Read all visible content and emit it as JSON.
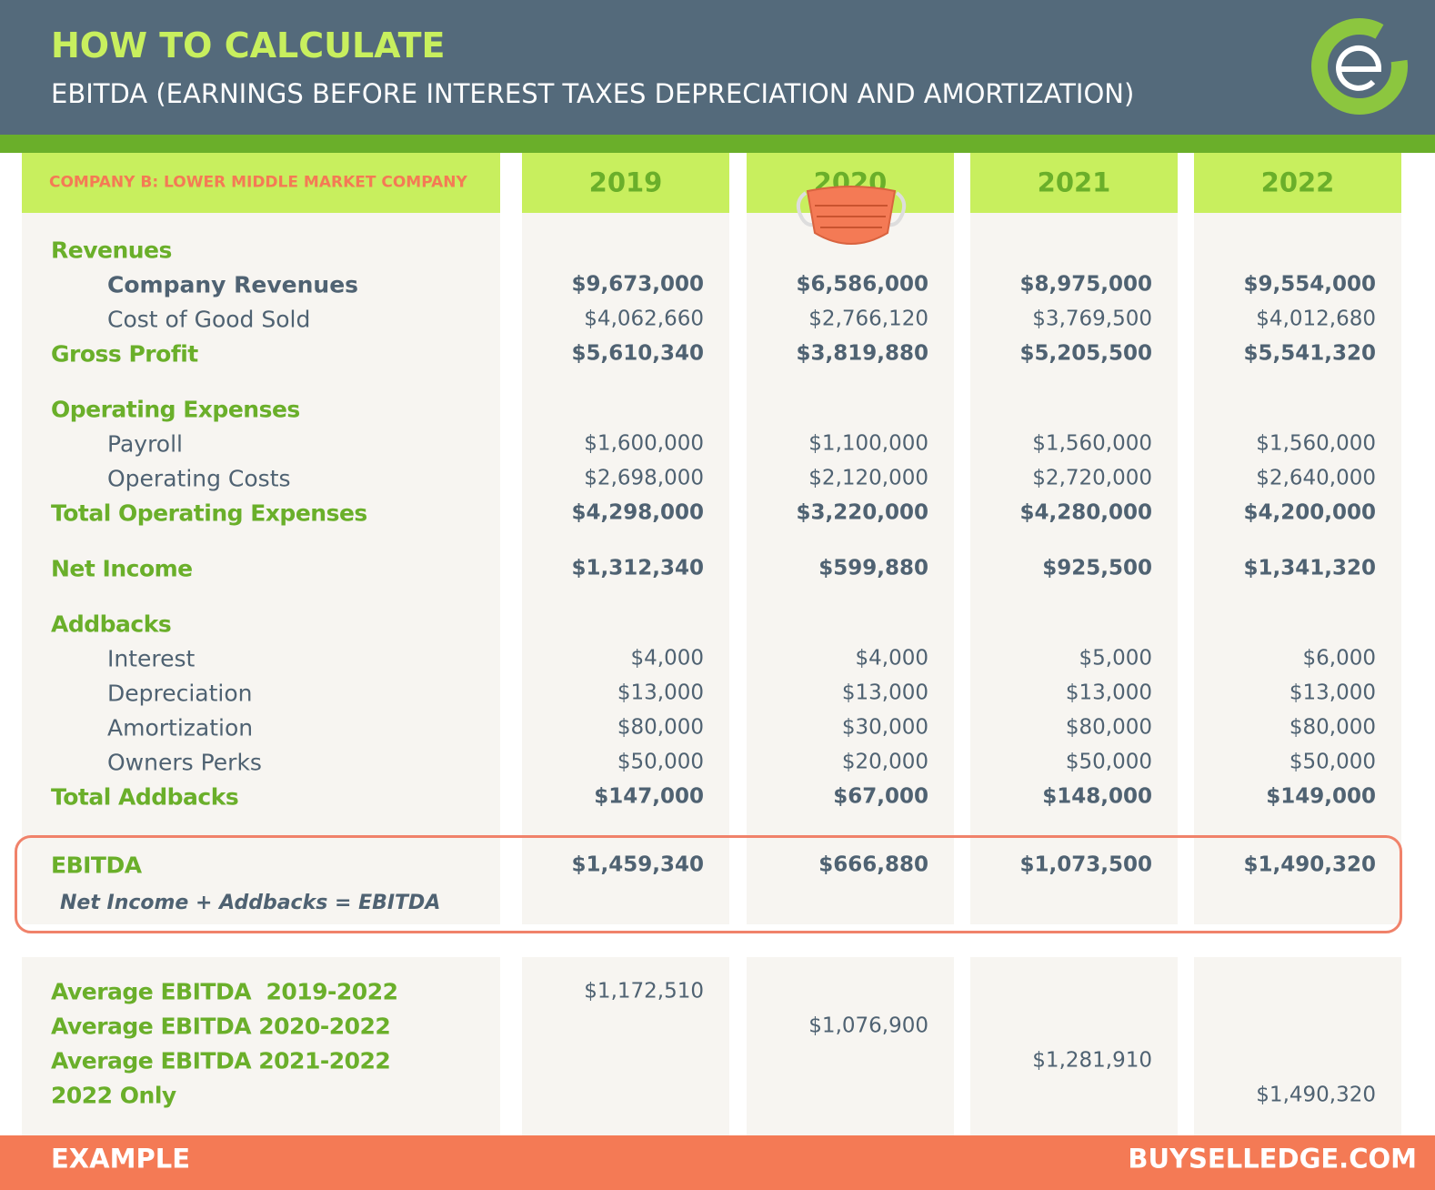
{
  "header": {
    "title": "HOW TO CALCULATE",
    "subtitle": "EBITDA (EARNINGS BEFORE INTEREST TAXES DEPRECIATION AND AMORTIZATION)"
  },
  "table": {
    "company": "COMPANY B: LOWER MIDDLE MARKET COMPANY",
    "years": [
      "2019",
      "2020",
      "2021",
      "2022"
    ],
    "sections": [
      {
        "heading": "Revenues",
        "items": [
          {
            "label": "Company Revenues",
            "values": [
              "$9,673,000",
              "$6,586,000",
              "$8,975,000",
              "$9,554,000"
            ]
          },
          {
            "label": "Cost of Good Sold",
            "values": [
              "$4,062,660",
              "$2,766,120",
              "$3,769,500",
              "$4,012,680"
            ]
          }
        ],
        "total": {
          "label": "Gross Profit",
          "values": [
            "$5,610,340",
            "$3,819,880",
            "$5,205,500",
            "$5,541,320"
          ]
        }
      },
      {
        "heading": "Operating Expenses",
        "items": [
          {
            "label": "Payroll",
            "values": [
              "$1,600,000",
              "$1,100,000",
              "$1,560,000",
              "$1,560,000"
            ]
          },
          {
            "label": "Operating Costs",
            "values": [
              "$2,698,000",
              "$2,120,000",
              "$2,720,000",
              "$2,640,000"
            ]
          }
        ],
        "total": {
          "label": "Total Operating Expenses",
          "values": [
            "$4,298,000",
            "$3,220,000",
            "$4,280,000",
            "$4,200,000"
          ]
        }
      }
    ],
    "net_income": {
      "label": "Net Income",
      "values": [
        "$1,312,340",
        "$599,880",
        "$925,500",
        "$1,341,320"
      ]
    },
    "addbacks": {
      "heading": "Addbacks",
      "items": [
        {
          "label": "Interest",
          "values": [
            "$4,000",
            "$4,000",
            "$5,000",
            "$6,000"
          ]
        },
        {
          "label": "Depreciation",
          "values": [
            "$13,000",
            "$13,000",
            "$13,000",
            "$13,000"
          ]
        },
        {
          "label": "Amortization",
          "values": [
            "$80,000",
            "$30,000",
            "$80,000",
            "$80,000"
          ]
        },
        {
          "label": "Owners Perks",
          "values": [
            "$50,000",
            "$20,000",
            "$50,000",
            "$50,000"
          ]
        }
      ],
      "total": {
        "label": "Total Addbacks",
        "values": [
          "$147,000",
          "$67,000",
          "$148,000",
          "$149,000"
        ]
      }
    },
    "ebitda": {
      "label": "EBITDA",
      "values": [
        "$1,459,340",
        "$666,880",
        "$1,073,500",
        "$1,490,320"
      ],
      "formula": "Net Income + Addbacks = EBITDA"
    },
    "averages": [
      {
        "label": "Average EBITDA  2019-2022",
        "value": "$1,172,510"
      },
      {
        "label": "Average EBITDA 2020-2022",
        "value": "$1,076,900"
      },
      {
        "label": "Average EBITDA 2021-2022",
        "value": "$1,281,910"
      },
      {
        "label": "2022 Only",
        "value": "$1,490,320"
      }
    ]
  },
  "footer": {
    "left": "EXAMPLE",
    "right": "BUYSELLEDGE.COM"
  }
}
